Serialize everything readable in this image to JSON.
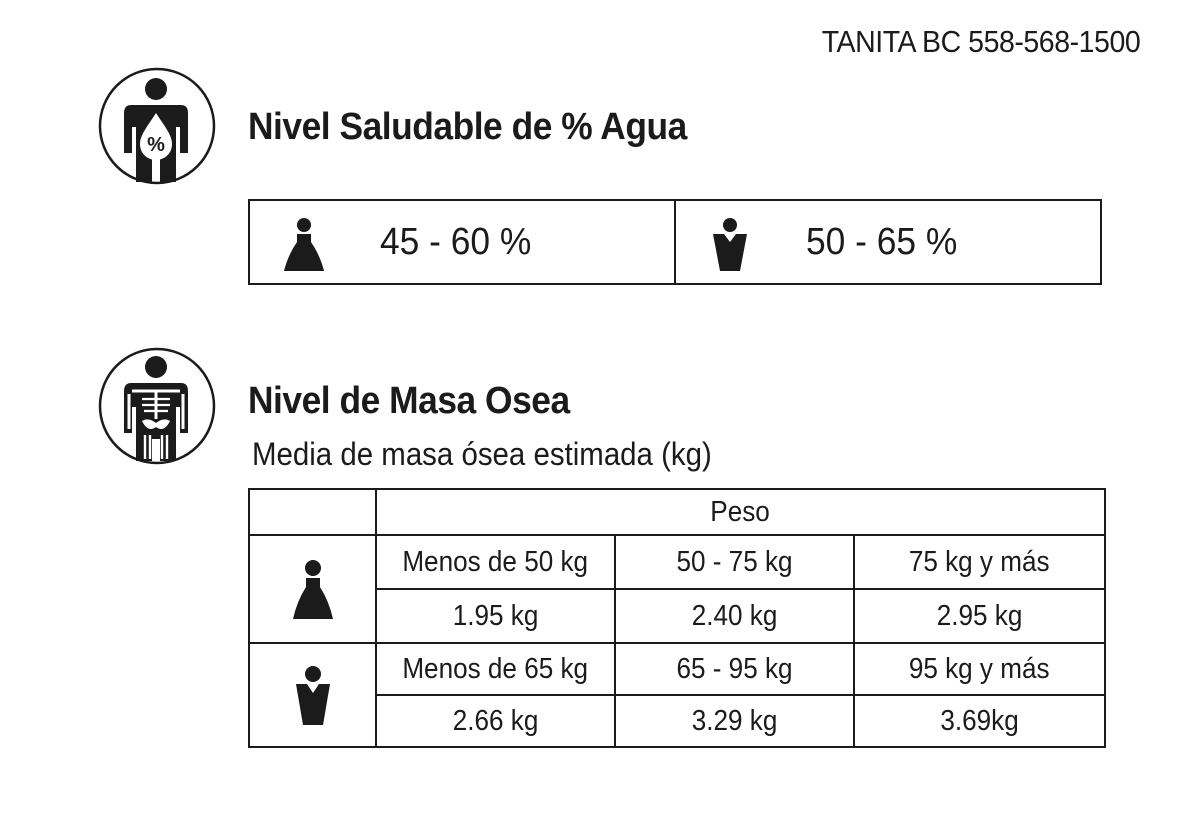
{
  "header": {
    "model_code": "TANITA BC 558-568-1500"
  },
  "water_section": {
    "icon": "water-percent-body-icon",
    "icon_glyph": "%",
    "title": "Nivel Saludable de % Agua",
    "female": {
      "icon": "female-icon",
      "range": "45 - 60 %"
    },
    "male": {
      "icon": "male-icon",
      "range": "50 - 65 %"
    }
  },
  "bone_section": {
    "icon": "skeleton-body-icon",
    "title": "Nivel de Masa Osea",
    "subtitle": "Media de masa ósea estimada (kg)",
    "table": {
      "header": "Peso",
      "rows": [
        {
          "gender_icon": "female-icon",
          "weight_ranges": [
            "Menos de 50 kg",
            "50 - 75 kg",
            "75 kg y más"
          ],
          "bone_mass": [
            "1.95 kg",
            "2.40 kg",
            "2.95 kg"
          ]
        },
        {
          "gender_icon": "male-icon",
          "weight_ranges": [
            "Menos de 65 kg",
            "65 - 95 kg",
            "95 kg y más"
          ],
          "bone_mass": [
            "2.66 kg",
            "3.29 kg",
            "3.69kg"
          ]
        }
      ]
    }
  },
  "colors": {
    "ink": "#1b1b1b",
    "background": "#ffffff"
  }
}
